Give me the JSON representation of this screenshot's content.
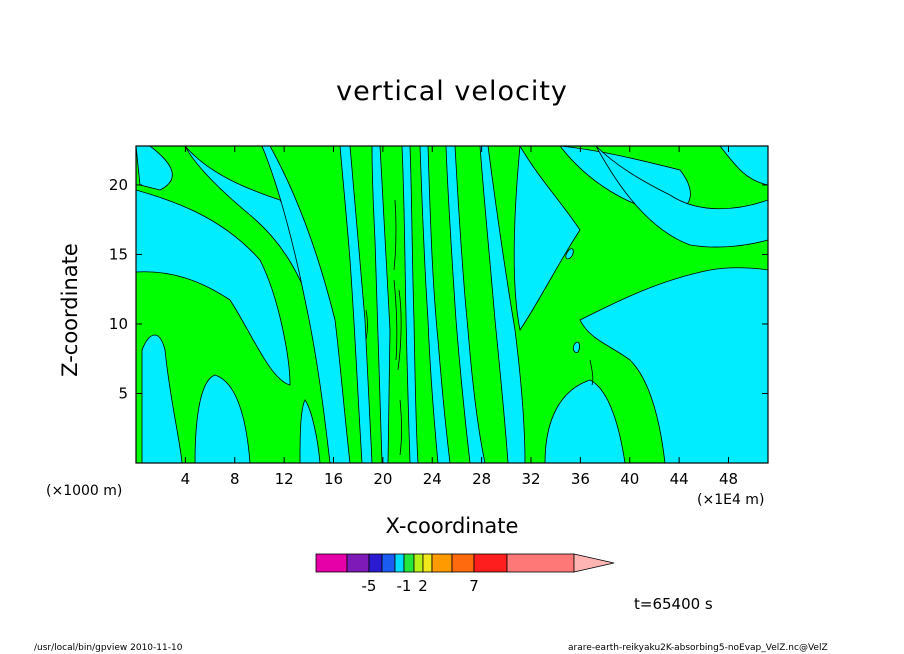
{
  "chart_data": {
    "type": "heatmap",
    "title": "vertical velocity",
    "xlabel": "X-coordinate",
    "ylabel": "Z-coordinate",
    "x_unit_left": "(×1000 m)",
    "x_unit_right": "(×1E4 m)",
    "xlim": [
      0,
      51.2
    ],
    "ylim": [
      0,
      22.8
    ],
    "x_ticks": [
      4,
      8,
      12,
      16,
      20,
      24,
      28,
      32,
      36,
      40,
      44,
      48
    ],
    "y_ticks": [
      5,
      10,
      15,
      20
    ],
    "colorbar": {
      "levels": [
        "-5",
        "-1",
        "2",
        "7"
      ],
      "colors": [
        "#e600a8",
        "#7d1ab8",
        "#2a1ad0",
        "#1a5cf0",
        "#00dcff",
        "#25e63a",
        "#b8f018",
        "#f0e81a",
        "#ff9a00",
        "#ff6a0f",
        "#ff1e1e",
        "#ff7878",
        "#ffb4b4"
      ]
    },
    "dominant_fill": {
      "positive": "#00ff00",
      "negative": "#00ecff"
    },
    "time_label": "t=65400 s"
  },
  "footer": {
    "left": "/usr/local/bin/gpview  2010-11-10",
    "right": "arare-earth-reikyaku2K-absorbing5-noEvap_VelZ.nc@VelZ"
  }
}
